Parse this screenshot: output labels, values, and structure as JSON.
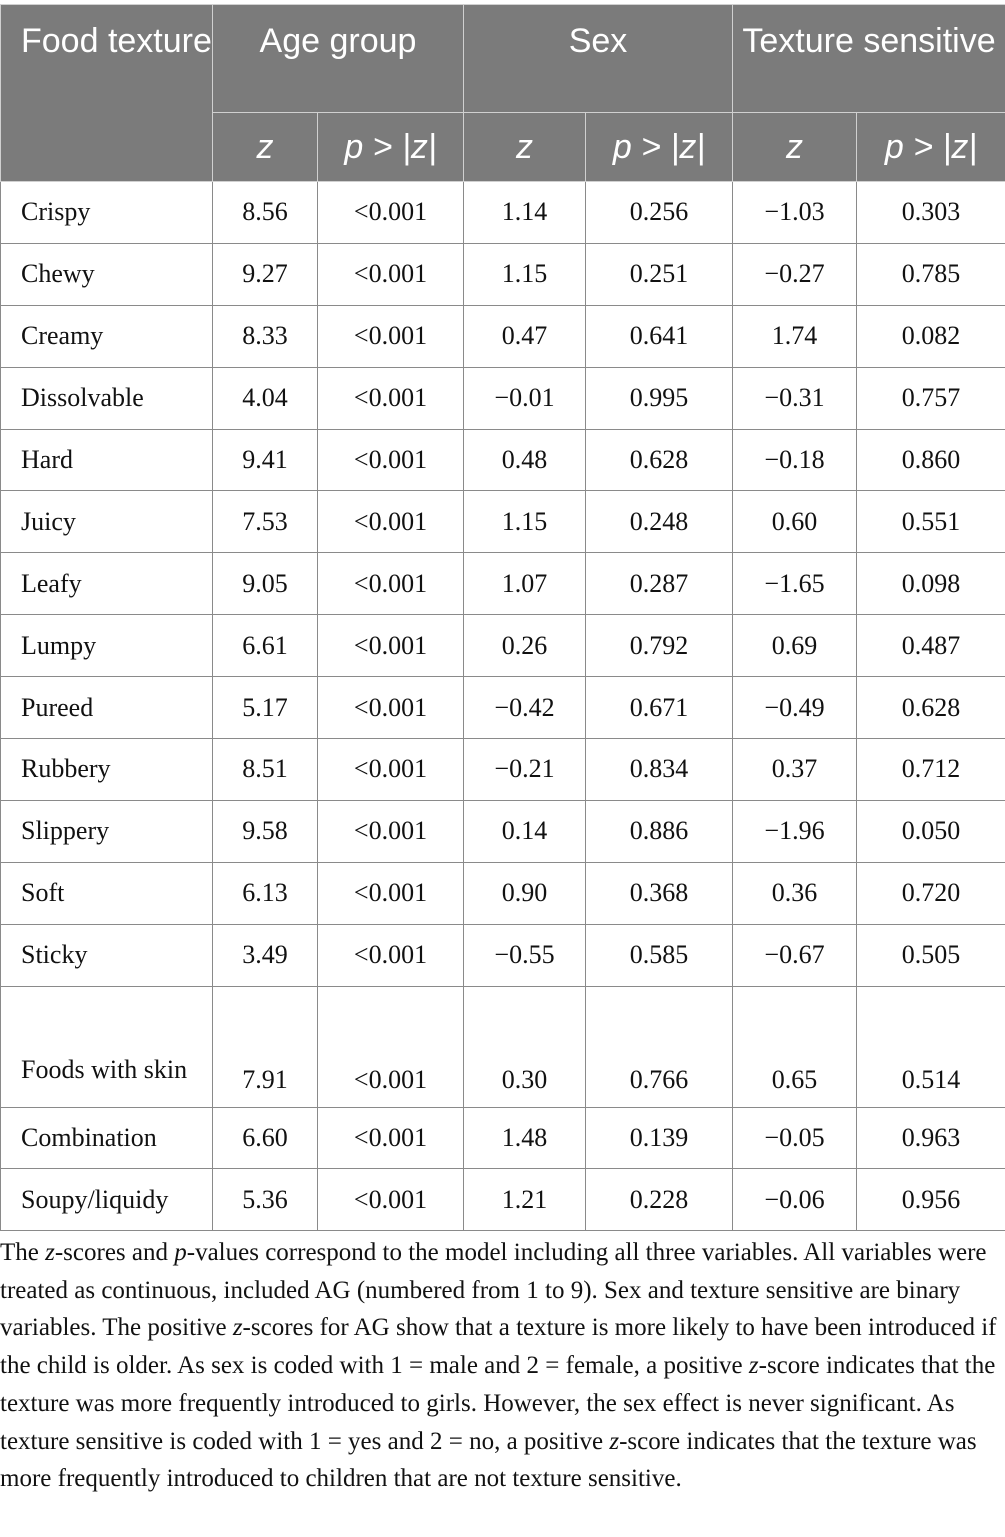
{
  "table": {
    "header": {
      "food_texture": "Food texture",
      "groups": [
        "Age group",
        "Sex",
        "Texture sensitive"
      ],
      "sub": [
        "z",
        "p > |z|",
        "z",
        "p > |z|",
        "z",
        "p > |z|"
      ]
    },
    "rows": [
      {
        "name": "Crispy",
        "v": [
          "8.56",
          "<0.001",
          "1.14",
          "0.256",
          "−1.03",
          "0.303"
        ]
      },
      {
        "name": "Chewy",
        "v": [
          "9.27",
          "<0.001",
          "1.15",
          "0.251",
          "−0.27",
          "0.785"
        ]
      },
      {
        "name": "Creamy",
        "v": [
          "8.33",
          "<0.001",
          "0.47",
          "0.641",
          "1.74",
          "0.082"
        ]
      },
      {
        "name": "Dissolvable",
        "v": [
          "4.04",
          "<0.001",
          "−0.01",
          "0.995",
          "−0.31",
          "0.757"
        ]
      },
      {
        "name": "Hard",
        "v": [
          "9.41",
          "<0.001",
          "0.48",
          "0.628",
          "−0.18",
          "0.860"
        ]
      },
      {
        "name": "Juicy",
        "v": [
          "7.53",
          "<0.001",
          "1.15",
          "0.248",
          "0.60",
          "0.551"
        ]
      },
      {
        "name": "Leafy",
        "v": [
          "9.05",
          "<0.001",
          "1.07",
          "0.287",
          "−1.65",
          "0.098"
        ]
      },
      {
        "name": "Lumpy",
        "v": [
          "6.61",
          "<0.001",
          "0.26",
          "0.792",
          "0.69",
          "0.487"
        ]
      },
      {
        "name": "Pureed",
        "v": [
          "5.17",
          "<0.001",
          "−0.42",
          "0.671",
          "−0.49",
          "0.628"
        ]
      },
      {
        "name": "Rubbery",
        "v": [
          "8.51",
          "<0.001",
          "−0.21",
          "0.834",
          "0.37",
          "0.712"
        ]
      },
      {
        "name": "Slippery",
        "v": [
          "9.58",
          "<0.001",
          "0.14",
          "0.886",
          "−1.96",
          "0.050"
        ]
      },
      {
        "name": "Soft",
        "v": [
          "6.13",
          "<0.001",
          "0.90",
          "0.368",
          "0.36",
          "0.720"
        ]
      },
      {
        "name": "Sticky",
        "v": [
          "3.49",
          "<0.001",
          "−0.55",
          "0.585",
          "−0.67",
          "0.505"
        ]
      },
      {
        "name": "Foods with skin",
        "v": [
          "7.91",
          "<0.001",
          "0.30",
          "0.766",
          "0.65",
          "0.514"
        ]
      },
      {
        "name": "Combination",
        "v": [
          "6.60",
          "<0.001",
          "1.48",
          "0.139",
          "−0.05",
          "0.963"
        ]
      },
      {
        "name": "Soupy/liquidy",
        "v": [
          "5.36",
          "<0.001",
          "1.21",
          "0.228",
          "−0.06",
          "0.956"
        ]
      }
    ]
  },
  "footnote": {
    "z1": "z",
    "t1": "-scores and ",
    "p1": "p",
    "t2": "-values correspond to the model including all three variables. All variables were treated as continuous, included AG (numbered from 1 to 9). Sex and texture sensitive are binary variables. The positive ",
    "z2": "z",
    "t3": "-scores for AG show that a texture is more likely to have been introduced if the child is older. As sex is coded with 1 = male and 2 = female, a positive ",
    "z3": "z",
    "t4": "-score indicates that the texture was more frequently introduced to girls. However, the sex effect is never significant. As texture sensitive is coded with 1 = yes and 2 = no, a positive ",
    "z4": "z",
    "t5": "-score indicates that the texture was more frequently introduced to children that are not texture sensitive.",
    "prefix": "The "
  }
}
